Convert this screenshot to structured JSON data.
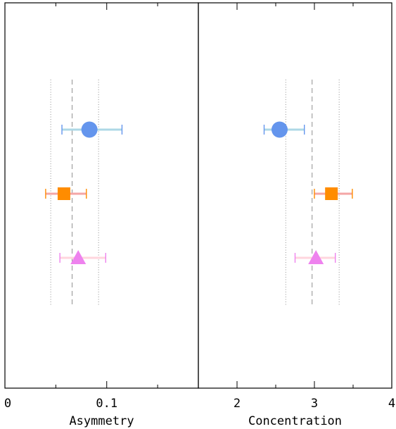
{
  "chart_data": [
    {
      "type": "scatter",
      "subtype": "horizontal-errorbar",
      "xlabel": "Asymmetry",
      "xlim": [
        0,
        0.19
      ],
      "x_ticks": [
        0,
        0.1
      ],
      "x_tick_labels": [
        "0",
        "0.1"
      ],
      "reference_lines": {
        "median": 0.066,
        "lower": 0.045,
        "upper": 0.092,
        "span_rows": [
          0.5,
          3.5
        ]
      },
      "points": [
        {
          "row": 1,
          "x": 0.083,
          "xerr_low": 0.056,
          "xerr_high": 0.115,
          "marker": "circle",
          "color": "#6495ED",
          "bar_color": "#ADD8E6"
        },
        {
          "row": 2,
          "x": 0.058,
          "xerr_low": 0.04,
          "xerr_high": 0.08,
          "marker": "square",
          "color": "#FF8C00",
          "bar_color": "#F4A6A6"
        },
        {
          "row": 3,
          "x": 0.072,
          "xerr_low": 0.054,
          "xerr_high": 0.099,
          "marker": "triangle",
          "color": "#EE82EE",
          "bar_color": "#FFD6DE"
        }
      ]
    },
    {
      "type": "scatter",
      "subtype": "horizontal-errorbar",
      "xlabel": "Concentration",
      "xlim": [
        1.5,
        4
      ],
      "x_ticks": [
        2,
        3,
        4
      ],
      "x_tick_labels": [
        "2",
        "3",
        "4"
      ],
      "reference_lines": {
        "median": 2.97,
        "lower": 2.63,
        "upper": 3.32,
        "span_rows": [
          0.5,
          3.5
        ]
      },
      "points": [
        {
          "row": 1,
          "x": 2.55,
          "xerr_low": 2.35,
          "xerr_high": 2.87,
          "marker": "circle",
          "color": "#6495ED",
          "bar_color": "#ADD8E6"
        },
        {
          "row": 2,
          "x": 3.22,
          "xerr_low": 3.0,
          "xerr_high": 3.49,
          "marker": "square",
          "color": "#FF8C00",
          "bar_color": "#F4A6A6"
        },
        {
          "row": 3,
          "x": 3.02,
          "xerr_low": 2.75,
          "xerr_high": 3.27,
          "marker": "triangle",
          "color": "#EE82EE",
          "bar_color": "#FFD6DE"
        }
      ]
    }
  ]
}
